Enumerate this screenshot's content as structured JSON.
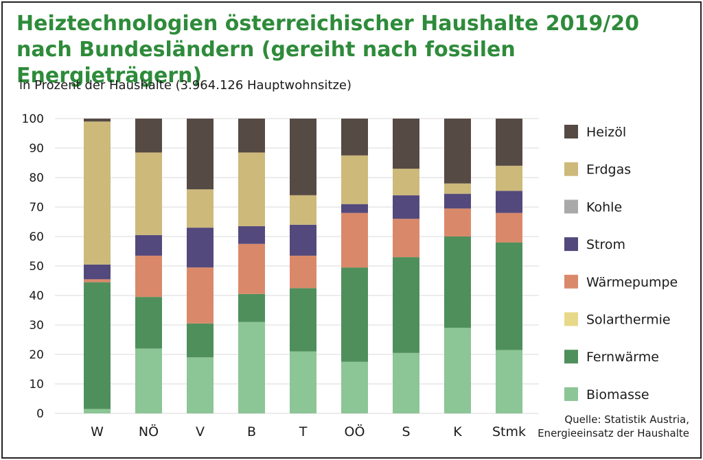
{
  "title_line1": "Heiztechnologien österreichischer Haushalte 2019/20",
  "title_line2": "nach Bundesländern (gereiht nach fossilen Energieträgern)",
  "subtitle": "in Prozent der Haushalte (3.964.126 Hauptwohnsitze)",
  "source_line1": "Quelle: Statistik Austria,",
  "source_line2": "Energieeinsatz der Haushalte",
  "chart_data": {
    "type": "bar",
    "stacked": true,
    "ylim": [
      0,
      100
    ],
    "yticks": [
      0,
      10,
      20,
      30,
      40,
      50,
      60,
      70,
      80,
      90,
      100
    ],
    "grid": true,
    "legend_position": "right",
    "categories": [
      "W",
      "NÖ",
      "V",
      "B",
      "T",
      "OÖ",
      "S",
      "K",
      "Stmk"
    ],
    "series": [
      {
        "name": "Biomasse",
        "color": "#8cc596",
        "values": [
          1.5,
          22,
          19,
          31,
          21,
          17.5,
          20.5,
          29,
          21.5
        ]
      },
      {
        "name": "Fernwärme",
        "color": "#4f8f5c",
        "values": [
          43,
          17.5,
          11.5,
          9.5,
          21.5,
          32,
          32.5,
          31,
          36.5
        ]
      },
      {
        "name": "Solarthermie",
        "color": "#e8d98a",
        "values": [
          0,
          0,
          0,
          0,
          0,
          0,
          0,
          0,
          0
        ]
      },
      {
        "name": "Wärmepumpe",
        "color": "#d9896a",
        "values": [
          1,
          14,
          19,
          17,
          11,
          18.5,
          13,
          9.5,
          10
        ]
      },
      {
        "name": "Strom",
        "color": "#54497c",
        "values": [
          5,
          7,
          13.5,
          6,
          10.5,
          3,
          8,
          5,
          7.5
        ]
      },
      {
        "name": "Kohle",
        "color": "#a9a9a9",
        "values": [
          0,
          0,
          0,
          0,
          0,
          0,
          0,
          0,
          0
        ]
      },
      {
        "name": "Erdgas",
        "color": "#cdb97a",
        "values": [
          48.5,
          28,
          13,
          25,
          10,
          16.5,
          9,
          3.5,
          8.5
        ]
      },
      {
        "name": "Heizöl",
        "color": "#564a44",
        "values": [
          1,
          11.5,
          24,
          11.5,
          26,
          12.5,
          17,
          22,
          16
        ]
      }
    ],
    "legend_order": [
      "Heizöl",
      "Erdgas",
      "Kohle",
      "Strom",
      "Wärmepumpe",
      "Solarthermie",
      "Fernwärme",
      "Biomasse"
    ]
  }
}
